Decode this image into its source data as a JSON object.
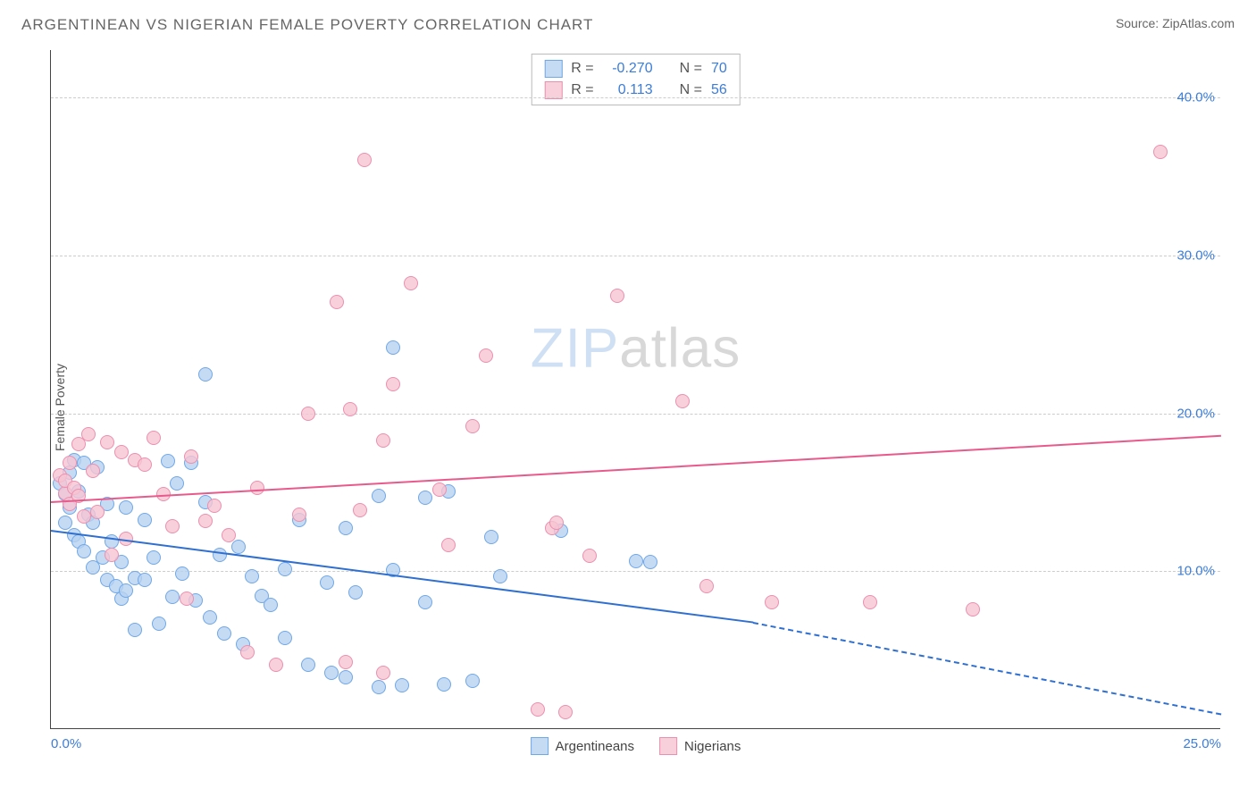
{
  "title": "ARGENTINEAN VS NIGERIAN FEMALE POVERTY CORRELATION CHART",
  "source_label": "Source:",
  "source_name": "ZipAtlas.com",
  "ylabel": "Female Poverty",
  "watermark_bold": "ZIP",
  "watermark_light": "atlas",
  "chart": {
    "type": "scatter",
    "xlim": [
      0,
      25
    ],
    "ylim": [
      0,
      43
    ],
    "xtick_min_label": "0.0%",
    "xtick_max_label": "25.0%",
    "yticks": [
      {
        "v": 10,
        "label": "10.0%"
      },
      {
        "v": 20,
        "label": "20.0%"
      },
      {
        "v": 30,
        "label": "30.0%"
      },
      {
        "v": 40,
        "label": "40.0%"
      }
    ],
    "grid_color": "#cccccc",
    "axis_color": "#444444",
    "background_color": "#ffffff",
    "tick_label_color": "#3b7dd8",
    "tick_fontsize": 15,
    "marker_size": 16,
    "series": [
      {
        "name": "Argentineans",
        "color_fill": "#b6d1f0cc",
        "color_stroke": "#6fa8e8",
        "trend_color": "#2f6fd0",
        "R": "-0.270",
        "N": "70",
        "trend": {
          "x1": 0,
          "y1": 12.6,
          "x2": 15,
          "y2": 6.8,
          "dash_after_x": 15,
          "x_end": 25,
          "y_end": 1.0
        },
        "points": [
          [
            0.2,
            15.5
          ],
          [
            0.3,
            14.8
          ],
          [
            0.3,
            13.0
          ],
          [
            0.4,
            16.2
          ],
          [
            0.4,
            14.0
          ],
          [
            0.5,
            17.0
          ],
          [
            0.5,
            12.2
          ],
          [
            0.6,
            15.0
          ],
          [
            0.6,
            11.8
          ],
          [
            0.7,
            16.8
          ],
          [
            0.7,
            11.2
          ],
          [
            0.8,
            13.5
          ],
          [
            0.9,
            13.0
          ],
          [
            0.9,
            10.2
          ],
          [
            1.0,
            16.5
          ],
          [
            1.1,
            10.8
          ],
          [
            1.2,
            14.2
          ],
          [
            1.2,
            9.4
          ],
          [
            1.3,
            11.8
          ],
          [
            1.4,
            9.0
          ],
          [
            1.5,
            10.5
          ],
          [
            1.5,
            8.2
          ],
          [
            1.6,
            14.0
          ],
          [
            1.6,
            8.7
          ],
          [
            1.8,
            9.5
          ],
          [
            1.8,
            6.2
          ],
          [
            2.0,
            13.2
          ],
          [
            2.0,
            9.4
          ],
          [
            2.2,
            10.8
          ],
          [
            2.3,
            6.6
          ],
          [
            2.5,
            16.9
          ],
          [
            2.6,
            8.3
          ],
          [
            2.7,
            15.5
          ],
          [
            2.8,
            9.8
          ],
          [
            3.0,
            16.8
          ],
          [
            3.1,
            8.1
          ],
          [
            3.3,
            14.3
          ],
          [
            3.4,
            7.0
          ],
          [
            3.6,
            11.0
          ],
          [
            3.7,
            6.0
          ],
          [
            3.3,
            22.4
          ],
          [
            4.0,
            11.5
          ],
          [
            4.1,
            5.3
          ],
          [
            4.3,
            9.6
          ],
          [
            4.5,
            8.4
          ],
          [
            4.7,
            7.8
          ],
          [
            5.0,
            10.1
          ],
          [
            5.0,
            5.7
          ],
          [
            5.3,
            13.2
          ],
          [
            5.5,
            4.0
          ],
          [
            5.9,
            9.2
          ],
          [
            6.0,
            3.5
          ],
          [
            6.3,
            12.7
          ],
          [
            6.3,
            3.2
          ],
          [
            6.5,
            8.6
          ],
          [
            7.0,
            14.7
          ],
          [
            7.0,
            2.6
          ],
          [
            7.3,
            10.0
          ],
          [
            7.3,
            24.1
          ],
          [
            7.5,
            2.7
          ],
          [
            8.0,
            8.0
          ],
          [
            8.0,
            14.6
          ],
          [
            8.4,
            2.8
          ],
          [
            8.5,
            15.0
          ],
          [
            9.0,
            3.0
          ],
          [
            9.4,
            12.1
          ],
          [
            9.6,
            9.6
          ],
          [
            10.9,
            12.5
          ],
          [
            12.5,
            10.6
          ],
          [
            12.8,
            10.5
          ]
        ]
      },
      {
        "name": "Nigerians",
        "color_fill": "#f6c4d2cc",
        "color_stroke": "#ec8fae",
        "trend_color": "#e75a8b",
        "R": "0.113",
        "N": "56",
        "trend": {
          "x1": 0,
          "y1": 14.4,
          "x2": 25,
          "y2": 18.6
        },
        "points": [
          [
            0.2,
            16.0
          ],
          [
            0.3,
            14.9
          ],
          [
            0.3,
            15.7
          ],
          [
            0.4,
            16.8
          ],
          [
            0.4,
            14.2
          ],
          [
            0.5,
            15.2
          ],
          [
            0.6,
            18.0
          ],
          [
            0.6,
            14.7
          ],
          [
            0.7,
            13.4
          ],
          [
            0.8,
            18.6
          ],
          [
            0.9,
            16.3
          ],
          [
            1.0,
            13.7
          ],
          [
            1.2,
            18.1
          ],
          [
            1.3,
            11.0
          ],
          [
            1.5,
            17.5
          ],
          [
            1.6,
            12.0
          ],
          [
            1.8,
            17.0
          ],
          [
            2.0,
            16.7
          ],
          [
            2.2,
            18.4
          ],
          [
            2.4,
            14.8
          ],
          [
            2.6,
            12.8
          ],
          [
            2.9,
            8.2
          ],
          [
            3.0,
            17.2
          ],
          [
            3.3,
            13.1
          ],
          [
            3.5,
            14.1
          ],
          [
            3.8,
            12.2
          ],
          [
            4.2,
            4.8
          ],
          [
            4.4,
            15.2
          ],
          [
            4.8,
            4.0
          ],
          [
            5.3,
            13.5
          ],
          [
            5.5,
            19.9
          ],
          [
            6.1,
            27.0
          ],
          [
            6.3,
            4.2
          ],
          [
            6.4,
            20.2
          ],
          [
            6.6,
            13.8
          ],
          [
            6.7,
            36.0
          ],
          [
            7.1,
            18.2
          ],
          [
            7.1,
            3.5
          ],
          [
            7.3,
            21.8
          ],
          [
            7.7,
            28.2
          ],
          [
            8.3,
            15.1
          ],
          [
            8.5,
            11.6
          ],
          [
            9.0,
            19.1
          ],
          [
            9.3,
            23.6
          ],
          [
            10.4,
            1.2
          ],
          [
            10.7,
            12.7
          ],
          [
            10.8,
            13.0
          ],
          [
            11.0,
            1.0
          ],
          [
            12.1,
            27.4
          ],
          [
            11.5,
            10.9
          ],
          [
            13.5,
            20.7
          ],
          [
            14.0,
            9.0
          ],
          [
            15.4,
            8.0
          ],
          [
            17.5,
            8.0
          ],
          [
            19.7,
            7.5
          ],
          [
            23.7,
            36.5
          ]
        ]
      }
    ]
  },
  "legend_labels": {
    "R": "R =",
    "N": "N ="
  }
}
